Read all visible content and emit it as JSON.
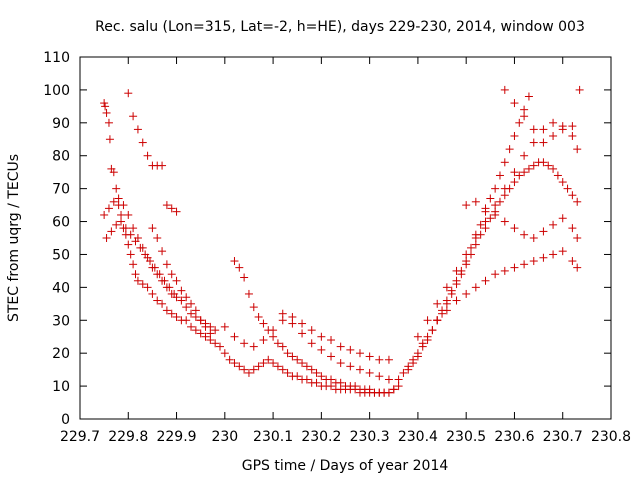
{
  "chart_data": {
    "type": "scatter",
    "title": "Rec. salu (Lon=315, Lat=-2, h=HE), days 229-230, 2014, window 003",
    "xlabel": "GPS time / Days of year 2014",
    "ylabel": "STEC from uqrg / TECUs",
    "xlim": [
      229.7,
      230.8
    ],
    "ylim": [
      0,
      110
    ],
    "xticks": [
      "229.7",
      "229.8",
      "229.9",
      "230",
      "230.1",
      "230.2",
      "230.3",
      "230.4",
      "230.5",
      "230.6",
      "230.7",
      "230.8"
    ],
    "yticks": [
      "0",
      "10",
      "20",
      "30",
      "40",
      "50",
      "60",
      "70",
      "80",
      "90",
      "100",
      "110"
    ],
    "marker": "+",
    "grid": false,
    "color": "#cc0000",
    "series": [
      {
        "x": [
          229.75,
          229.752,
          229.755,
          229.76,
          229.762,
          229.765,
          229.77,
          229.775,
          229.78,
          229.785,
          229.79,
          229.795,
          229.8,
          229.805,
          229.81,
          229.815,
          229.82,
          229.83,
          229.84,
          229.85,
          229.86,
          229.87,
          229.88,
          229.89,
          229.9,
          229.91,
          229.92,
          229.93,
          229.94,
          229.95,
          229.96,
          229.97,
          229.98,
          229.99
        ],
        "y": [
          96,
          95,
          93,
          90,
          85,
          76,
          75,
          70,
          65,
          62,
          58,
          56,
          53,
          50,
          47,
          44,
          42,
          41,
          40,
          38,
          36,
          35,
          33,
          32,
          31,
          30,
          30,
          28,
          27,
          26,
          25,
          24,
          23,
          22
        ]
      },
      {
        "x": [
          229.75,
          229.76,
          229.77,
          229.78,
          229.79,
          229.8,
          229.81,
          229.82,
          229.83,
          229.84,
          229.85,
          229.86,
          229.87,
          229.88,
          229.89,
          229.9,
          229.91,
          229.92,
          229.93,
          229.94,
          229.95,
          229.96,
          229.97,
          229.98
        ],
        "y": [
          62,
          64,
          66,
          67,
          65,
          62,
          58,
          55,
          52,
          49,
          46,
          44,
          42,
          40,
          38,
          37,
          36,
          34,
          32,
          31,
          30,
          29,
          28,
          27
        ]
      },
      {
        "x": [
          229.755,
          229.765,
          229.775,
          229.785,
          229.795,
          229.805,
          229.815,
          229.825,
          229.835,
          229.845,
          229.855,
          229.865,
          229.875,
          229.885,
          229.895
        ],
        "y": [
          55,
          57,
          59,
          60,
          58,
          56,
          54,
          52,
          50,
          48,
          46,
          44,
          42,
          40,
          38
        ]
      },
      {
        "x": [
          229.8,
          229.81,
          229.82,
          229.83,
          229.84,
          229.85,
          229.86,
          229.87,
          229.88,
          229.89,
          229.9
        ],
        "y": [
          99,
          92,
          88,
          84,
          80,
          77,
          77,
          77,
          65,
          64,
          63
        ]
      },
      {
        "x": [
          229.85,
          229.86,
          229.87,
          229.88,
          229.89,
          229.9,
          229.91,
          229.92,
          229.93,
          229.94,
          229.95,
          229.96,
          229.97
        ],
        "y": [
          58,
          55,
          51,
          47,
          44,
          42,
          39,
          37,
          35,
          33,
          30,
          28,
          26
        ]
      },
      {
        "x": [
          230.02,
          230.03,
          230.04,
          230.05,
          230.06,
          230.07,
          230.08,
          230.09,
          230.1,
          230.11,
          230.12,
          230.13,
          230.14,
          230.15,
          230.16,
          230.17,
          230.18,
          230.19,
          230.2,
          230.21,
          230.22,
          230.23,
          230.24,
          230.25,
          230.26,
          230.27,
          230.28,
          230.29,
          230.3,
          230.31,
          230.32,
          230.33,
          230.34,
          230.35
        ],
        "y": [
          48,
          46,
          43,
          38,
          34,
          31,
          29,
          27,
          25,
          23,
          22,
          20,
          19,
          18,
          17,
          16,
          15,
          14,
          13,
          12,
          12,
          11,
          11,
          10,
          10,
          10,
          9,
          9,
          9,
          8,
          8,
          8,
          8,
          9
        ]
      },
      {
        "x": [
          230.0,
          230.01,
          230.02,
          230.03,
          230.04,
          230.05,
          230.06,
          230.07,
          230.08,
          230.09,
          230.1,
          230.11,
          230.12,
          230.13,
          230.14,
          230.15,
          230.16,
          230.17,
          230.18,
          230.19,
          230.2,
          230.21,
          230.22,
          230.23,
          230.24,
          230.25,
          230.26,
          230.27,
          230.28,
          230.29,
          230.3,
          230.31,
          230.32,
          230.33,
          230.34,
          230.35,
          230.36
        ],
        "y": [
          20,
          18,
          17,
          16,
          15,
          14,
          15,
          16,
          17,
          18,
          17,
          16,
          15,
          14,
          13,
          13,
          12,
          12,
          11,
          11,
          10,
          10,
          10,
          9,
          9,
          9,
          9,
          9,
          8,
          8,
          8,
          8,
          8,
          8,
          8,
          9,
          10
        ]
      },
      {
        "x": [
          230.0,
          230.02,
          230.04,
          230.06,
          230.08,
          230.1,
          230.12,
          230.14,
          230.16,
          230.18,
          230.2,
          230.22,
          230.24,
          230.26,
          230.28,
          230.3,
          230.32,
          230.34
        ],
        "y": [
          28,
          25,
          23,
          22,
          24,
          27,
          30,
          29,
          26,
          23,
          21,
          19,
          17,
          16,
          15,
          14,
          13,
          12
        ]
      },
      {
        "x": [
          230.12,
          230.14,
          230.16,
          230.18,
          230.2,
          230.22,
          230.24,
          230.26,
          230.28,
          230.3,
          230.32,
          230.34
        ],
        "y": [
          32,
          31,
          29,
          27,
          25,
          24,
          22,
          21,
          20,
          19,
          18,
          18
        ]
      },
      {
        "x": [
          230.36,
          230.37,
          230.38,
          230.39,
          230.4,
          230.41,
          230.42,
          230.43,
          230.44,
          230.45,
          230.46,
          230.47,
          230.48,
          230.49,
          230.5,
          230.51,
          230.52,
          230.53,
          230.54,
          230.55,
          230.56,
          230.57,
          230.58,
          230.59,
          230.6,
          230.61,
          230.62,
          230.63
        ],
        "y": [
          12,
          14,
          16,
          18,
          20,
          23,
          25,
          27,
          30,
          33,
          36,
          39,
          42,
          45,
          48,
          52,
          56,
          59,
          63,
          67,
          70,
          74,
          78,
          82,
          86,
          90,
          94,
          98
        ]
      },
      {
        "x": [
          230.38,
          230.39,
          230.4,
          230.41,
          230.42,
          230.43,
          230.44,
          230.45,
          230.46,
          230.47,
          230.48,
          230.49,
          230.5,
          230.51,
          230.52,
          230.53,
          230.54,
          230.55,
          230.56,
          230.57,
          230.58,
          230.59,
          230.6,
          230.61,
          230.62,
          230.63,
          230.64,
          230.65,
          230.66,
          230.67,
          230.68,
          230.69,
          230.7,
          230.71,
          230.72,
          230.73
        ],
        "y": [
          15,
          17,
          19,
          22,
          24,
          27,
          30,
          32,
          35,
          38,
          41,
          44,
          47,
          50,
          53,
          56,
          58,
          61,
          63,
          66,
          68,
          70,
          72,
          74,
          75,
          76,
          77,
          78,
          78,
          77,
          76,
          74,
          72,
          70,
          68,
          66
        ]
      },
      {
        "x": [
          230.4,
          230.42,
          230.44,
          230.46,
          230.48,
          230.5,
          230.52,
          230.54,
          230.56,
          230.58,
          230.6,
          230.62,
          230.64,
          230.66,
          230.68,
          230.7,
          230.72,
          230.73
        ],
        "y": [
          25,
          30,
          35,
          40,
          45,
          50,
          55,
          60,
          65,
          70,
          75,
          80,
          84,
          88,
          90,
          89,
          86,
          82
        ]
      },
      {
        "x": [
          230.44,
          230.46,
          230.48,
          230.5,
          230.52,
          230.54,
          230.56,
          230.58,
          230.6,
          230.62,
          230.64,
          230.66,
          230.68,
          230.7,
          230.72,
          230.73
        ],
        "y": [
          30,
          33,
          36,
          38,
          40,
          42,
          44,
          45,
          46,
          47,
          48,
          49,
          50,
          51,
          48,
          46
        ]
      },
      {
        "x": [
          230.5,
          230.52,
          230.54,
          230.56,
          230.58,
          230.6,
          230.62,
          230.64,
          230.66,
          230.68,
          230.7,
          230.72,
          230.73
        ],
        "y": [
          65,
          66,
          64,
          62,
          60,
          58,
          56,
          55,
          57,
          59,
          61,
          58,
          55
        ]
      },
      {
        "x": [
          230.58,
          230.6,
          230.62,
          230.64,
          230.66,
          230.68,
          230.7,
          230.72,
          230.735
        ],
        "y": [
          100,
          96,
          92,
          88,
          84,
          86,
          88,
          89,
          100
        ]
      }
    ]
  }
}
